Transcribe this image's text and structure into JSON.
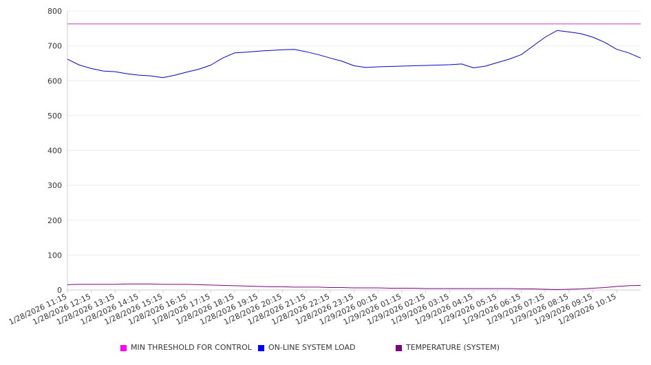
{
  "chart_data": {
    "type": "line",
    "ylim": [
      0,
      800
    ],
    "y_ticks": [
      0,
      100,
      200,
      300,
      400,
      500,
      600,
      700,
      800
    ],
    "grid": "horizontal",
    "legend_position": "bottom",
    "x_start": "1/28/2026 11:15",
    "x_end": "1/29/2026 11:15",
    "x_tick_labels": [
      "1/28/2026 11:15",
      "1/28/2026 12:15",
      "1/28/2026 13:15",
      "1/28/2026 14:15",
      "1/28/2026 15:15",
      "1/28/2026 16:15",
      "1/28/2026 17:15",
      "1/28/2026 18:15",
      "1/28/2026 19:15",
      "1/28/2026 20:15",
      "1/28/2026 21:15",
      "1/28/2026 22:15",
      "1/28/2026 23:15",
      "1/29/2026 00:15",
      "1/29/2026 01:15",
      "1/29/2026 02:15",
      "1/29/2026 03:15",
      "1/29/2026 04:15",
      "1/29/2026 05:15",
      "1/29/2026 06:15",
      "1/29/2026 07:15",
      "1/29/2026 08:15",
      "1/29/2026 09:15",
      "1/29/2026 10:15"
    ],
    "x": [
      "1/28/2026 11:15",
      "1/28/2026 11:45",
      "1/28/2026 12:15",
      "1/28/2026 12:45",
      "1/28/2026 13:15",
      "1/28/2026 13:45",
      "1/28/2026 14:15",
      "1/28/2026 14:45",
      "1/28/2026 15:15",
      "1/28/2026 15:45",
      "1/28/2026 16:15",
      "1/28/2026 16:45",
      "1/28/2026 17:15",
      "1/28/2026 17:45",
      "1/28/2026 18:15",
      "1/28/2026 18:45",
      "1/28/2026 19:15",
      "1/28/2026 19:45",
      "1/28/2026 20:15",
      "1/28/2026 20:45",
      "1/28/2026 21:15",
      "1/28/2026 21:45",
      "1/28/2026 22:15",
      "1/28/2026 22:45",
      "1/28/2026 23:15",
      "1/28/2026 23:45",
      "1/29/2026 00:15",
      "1/29/2026 00:45",
      "1/29/2026 01:15",
      "1/29/2026 01:45",
      "1/29/2026 02:15",
      "1/29/2026 02:45",
      "1/29/2026 03:15",
      "1/29/2026 03:45",
      "1/29/2026 04:15",
      "1/29/2026 04:45",
      "1/29/2026 05:15",
      "1/29/2026 05:45",
      "1/29/2026 06:15",
      "1/29/2026 06:45",
      "1/29/2026 07:15",
      "1/29/2026 07:45",
      "1/29/2026 08:15",
      "1/29/2026 08:45",
      "1/29/2026 09:15",
      "1/29/2026 09:45",
      "1/29/2026 10:15",
      "1/29/2026 10:45",
      "1/29/2026 11:15"
    ],
    "series": [
      {
        "name": "MIN THRESHOLD FOR CONTROL",
        "color": "#cc33cc",
        "values": [
          763,
          763,
          763,
          763,
          763,
          763,
          763,
          763,
          763,
          763,
          763,
          763,
          763,
          763,
          763,
          763,
          763,
          763,
          763,
          763,
          763,
          763,
          763,
          763,
          763,
          763,
          763,
          763,
          763,
          763,
          763,
          763,
          763,
          763,
          763,
          763,
          763,
          763,
          763,
          763,
          763,
          763,
          763,
          763,
          763,
          763,
          763,
          763,
          763
        ]
      },
      {
        "name": "ON-LINE SYSTEM LOAD",
        "color": "#0000cc",
        "values": [
          662,
          645,
          635,
          628,
          626,
          620,
          616,
          614,
          609,
          616,
          625,
          633,
          645,
          665,
          680,
          682,
          685,
          687,
          689,
          690,
          683,
          675,
          665,
          656,
          643,
          638,
          640,
          641,
          642,
          643,
          644,
          645,
          646,
          648,
          637,
          642,
          652,
          662,
          675,
          700,
          725,
          744,
          740,
          735,
          725,
          710,
          690,
          680,
          665
        ]
      },
      {
        "name": "TEMPERATURE (SYSTEM)",
        "color": "#800080",
        "values": [
          15,
          16,
          16,
          16,
          16,
          17,
          17,
          17,
          16,
          16,
          16,
          15,
          14,
          13,
          12,
          11,
          10,
          9,
          9,
          8,
          8,
          8,
          7,
          7,
          6,
          6,
          6,
          5,
          5,
          5,
          4,
          4,
          4,
          4,
          4,
          4,
          4,
          4,
          3,
          3,
          2,
          1,
          2,
          3,
          5,
          7,
          10,
          12,
          13
        ]
      }
    ]
  }
}
